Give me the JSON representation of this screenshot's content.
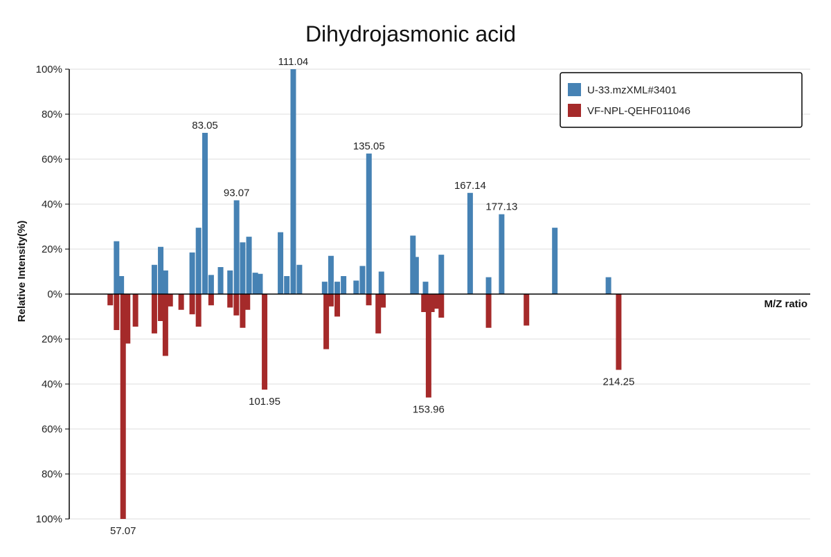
{
  "chart_data": {
    "type": "bar",
    "title": "Dihydrojasmonic acid",
    "xlabel": "M/Z ratio",
    "ylabel": "Relative Intensity(%)",
    "ylim": [
      -100,
      100
    ],
    "xlim": [
      40,
      275
    ],
    "yticks": [
      {
        "value": 100,
        "label": "100%"
      },
      {
        "value": 80,
        "label": "80%"
      },
      {
        "value": 60,
        "label": "60%"
      },
      {
        "value": 40,
        "label": "40%"
      },
      {
        "value": 20,
        "label": "20%"
      },
      {
        "value": 0,
        "label": "0%"
      },
      {
        "value": -20,
        "label": "20%"
      },
      {
        "value": -40,
        "label": "40%"
      },
      {
        "value": -60,
        "label": "60%"
      },
      {
        "value": -80,
        "label": "80%"
      },
      {
        "value": -100,
        "label": "100%"
      }
    ],
    "grid": true,
    "legend_position": "top-right",
    "series": [
      {
        "name": "U-33.mzXML#3401",
        "color": "#4682b4",
        "direction": "up",
        "points": [
          {
            "x": 55.0,
            "y": 23.5
          },
          {
            "x": 56.5,
            "y": 8.0
          },
          {
            "x": 67.0,
            "y": 13.0
          },
          {
            "x": 69.0,
            "y": 21.0
          },
          {
            "x": 70.5,
            "y": 10.5
          },
          {
            "x": 79.0,
            "y": 18.5
          },
          {
            "x": 81.0,
            "y": 29.5
          },
          {
            "x": 83.05,
            "y": 71.7,
            "label": "83.05"
          },
          {
            "x": 85.0,
            "y": 8.5
          },
          {
            "x": 88.0,
            "y": 12.0
          },
          {
            "x": 91.0,
            "y": 10.5
          },
          {
            "x": 93.07,
            "y": 41.7,
            "label": "93.07"
          },
          {
            "x": 95.0,
            "y": 23.0
          },
          {
            "x": 97.0,
            "y": 25.5
          },
          {
            "x": 99.0,
            "y": 9.5
          },
          {
            "x": 100.5,
            "y": 9.0
          },
          {
            "x": 107.0,
            "y": 27.5
          },
          {
            "x": 109.0,
            "y": 8.0
          },
          {
            "x": 111.04,
            "y": 100.0,
            "label": "111.04"
          },
          {
            "x": 113.0,
            "y": 13.0
          },
          {
            "x": 121.0,
            "y": 5.5
          },
          {
            "x": 123.0,
            "y": 17.0
          },
          {
            "x": 125.0,
            "y": 5.5
          },
          {
            "x": 127.0,
            "y": 8.0
          },
          {
            "x": 131.0,
            "y": 6.0
          },
          {
            "x": 133.0,
            "y": 12.5
          },
          {
            "x": 135.05,
            "y": 62.5,
            "label": "135.05"
          },
          {
            "x": 139.0,
            "y": 10.0
          },
          {
            "x": 149.0,
            "y": 26.0
          },
          {
            "x": 150.0,
            "y": 16.5
          },
          {
            "x": 153.0,
            "y": 5.5
          },
          {
            "x": 158.0,
            "y": 17.5
          },
          {
            "x": 167.14,
            "y": 45.0,
            "label": "167.14"
          },
          {
            "x": 173.0,
            "y": 7.5
          },
          {
            "x": 177.13,
            "y": 35.5,
            "label": "177.13"
          },
          {
            "x": 194.0,
            "y": 29.5
          },
          {
            "x": 211.0,
            "y": 7.5
          }
        ]
      },
      {
        "name": "VF-NPL-QEHF011046",
        "color": "#a52a2a",
        "direction": "down",
        "points": [
          {
            "x": 53.0,
            "y": 5.0
          },
          {
            "x": 55.0,
            "y": 16.0
          },
          {
            "x": 57.07,
            "y": 100.0,
            "label": "57.07"
          },
          {
            "x": 58.5,
            "y": 22.0
          },
          {
            "x": 61.0,
            "y": 14.5
          },
          {
            "x": 67.0,
            "y": 17.5
          },
          {
            "x": 69.0,
            "y": 12.0
          },
          {
            "x": 70.5,
            "y": 27.5
          },
          {
            "x": 72.0,
            "y": 5.5
          },
          {
            "x": 75.5,
            "y": 7.0
          },
          {
            "x": 79.0,
            "y": 9.0
          },
          {
            "x": 81.0,
            "y": 14.5
          },
          {
            "x": 85.0,
            "y": 5.0
          },
          {
            "x": 91.0,
            "y": 6.0
          },
          {
            "x": 93.0,
            "y": 9.5
          },
          {
            "x": 95.0,
            "y": 15.0
          },
          {
            "x": 96.5,
            "y": 7.0
          },
          {
            "x": 101.95,
            "y": 42.5,
            "label": "101.95"
          },
          {
            "x": 121.5,
            "y": 24.5
          },
          {
            "x": 123.0,
            "y": 5.5
          },
          {
            "x": 125.0,
            "y": 10.0
          },
          {
            "x": 135.0,
            "y": 5.0
          },
          {
            "x": 138.0,
            "y": 17.5
          },
          {
            "x": 139.5,
            "y": 6.0
          },
          {
            "x": 152.5,
            "y": 8.0
          },
          {
            "x": 153.96,
            "y": 46.0,
            "label": "153.96"
          },
          {
            "x": 155.0,
            "y": 8.0
          },
          {
            "x": 156.5,
            "y": 6.5
          },
          {
            "x": 158.0,
            "y": 10.5
          },
          {
            "x": 173.0,
            "y": 15.0
          },
          {
            "x": 185.0,
            "y": 14.0
          },
          {
            "x": 214.25,
            "y": 33.7,
            "label": "214.25"
          }
        ]
      }
    ]
  }
}
